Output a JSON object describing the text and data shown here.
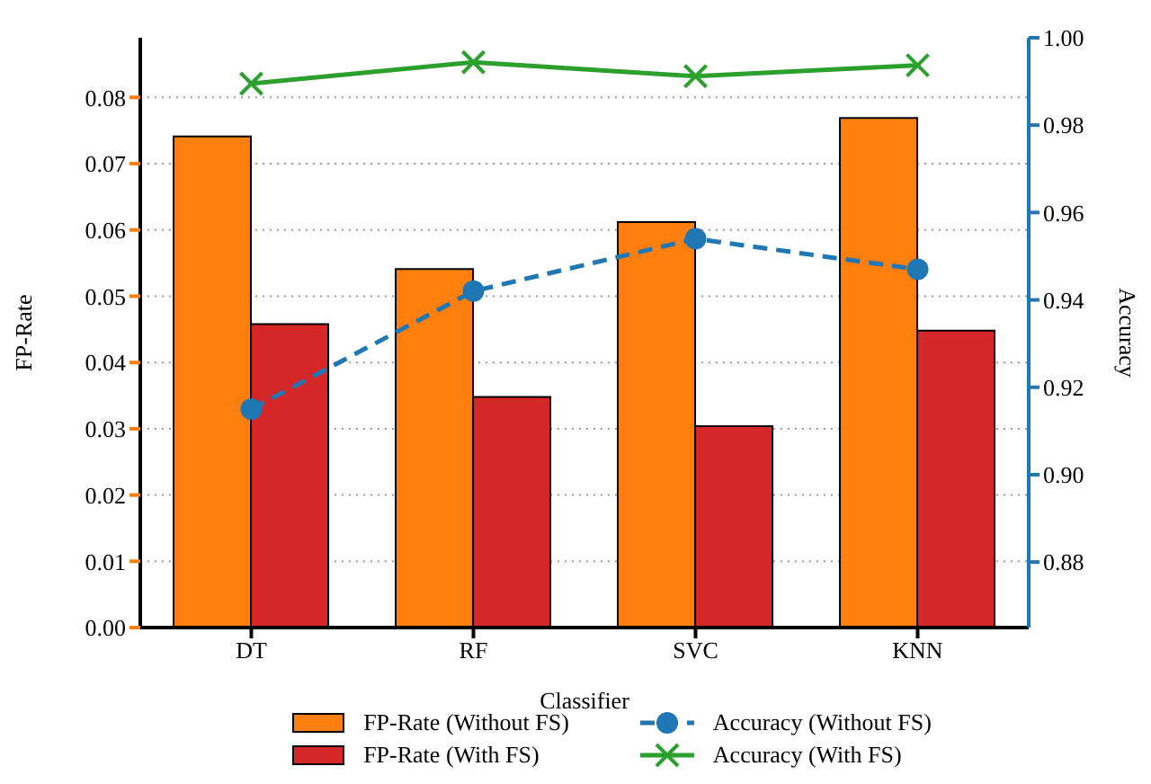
{
  "chart_data": {
    "type": "bar",
    "xlabel": "Classifier",
    "ylabel": "FP-Rate",
    "y2label": "Accuracy",
    "categories": [
      "DT",
      "RF",
      "SVC",
      "KNN"
    ],
    "series": [
      {
        "name": "FP-Rate (Without FS)",
        "color": "#ff7f0e",
        "values": [
          0.0741,
          0.0541,
          0.0612,
          0.0769
        ]
      },
      {
        "name": "FP-Rate (With FS)",
        "color": "#d62728",
        "values": [
          0.0458,
          0.0348,
          0.0304,
          0.0448
        ]
      },
      {
        "name": "Accuracy (Without FS)",
        "type": "line",
        "axis": "y2",
        "color": "#1f77b4",
        "marker": "circle",
        "line_style": "dashed",
        "values": [
          0.915,
          0.942,
          0.954,
          0.947
        ]
      },
      {
        "name": "Accuracy (With FS)",
        "type": "line",
        "axis": "y2",
        "color": "#2ca02c",
        "marker": "cross",
        "line_style": "solid",
        "values": [
          0.9895,
          0.9944,
          0.9912,
          0.9937
        ]
      }
    ],
    "ylim": [
      0,
      0.089
    ],
    "yticks": [
      {
        "value": 0,
        "label": "0.00"
      },
      0.01,
      0.02,
      0.03,
      0.04,
      0.05,
      0.06,
      0.07,
      0.08
    ],
    "y2lim": [
      0.865,
      1.0
    ],
    "y2ticks": [
      0.88,
      {
        "value": 0.9,
        "label": "0.90"
      },
      0.92,
      0.94,
      0.96,
      0.98,
      {
        "value": 1,
        "label": "1.00"
      }
    ],
    "grid": "y",
    "legend": "bottom"
  }
}
